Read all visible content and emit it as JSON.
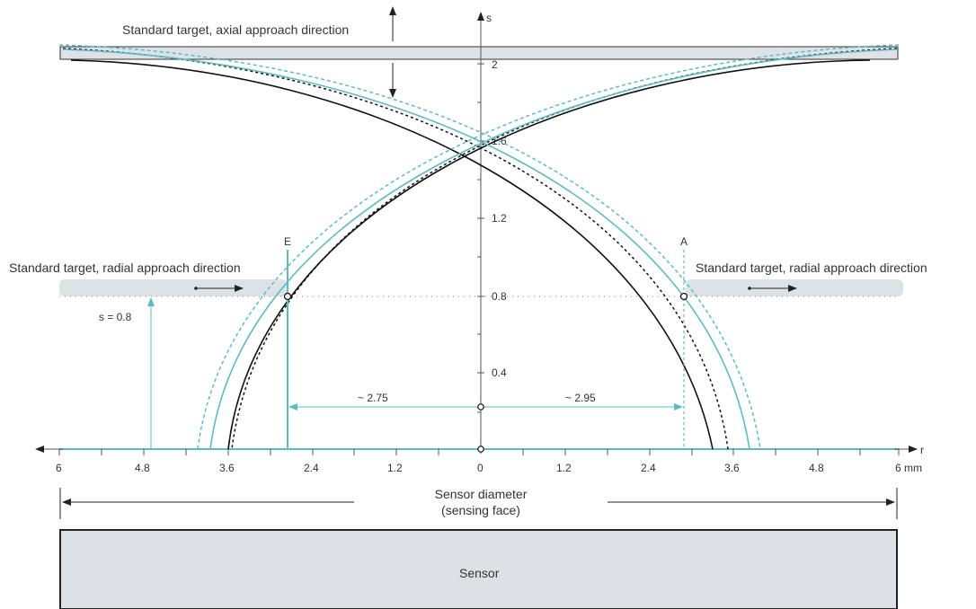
{
  "labels": {
    "axial_target": "Standard target, axial approach direction",
    "radial_left": "Standard target, radial approach direction",
    "radial_right": "Standard target, radial approach direction",
    "s_axis": "s",
    "r_axis": "r",
    "mm": "6 mm",
    "s_eq": "s = 0.8",
    "point_e": "E",
    "point_a": "A",
    "dist_left": "~ 2.75",
    "dist_right": "~ 2.95",
    "sensor_diameter_1": "Sensor diameter",
    "sensor_diameter_2": "(sensing face)",
    "sensor": "Sensor"
  },
  "x_ticks": [
    "6",
    "4.8",
    "3.6",
    "2.4",
    "1.2",
    "0",
    "1.2",
    "2.4",
    "3.6",
    "4.8"
  ],
  "s_ticks": [
    "0.4",
    "0.8",
    "1.2",
    "1.6",
    "2"
  ],
  "colors": {
    "teal": "#5bbcc8",
    "black": "#111111",
    "target_fill": "#dde2e6",
    "sensor_fill": "#dde1e5"
  }
}
